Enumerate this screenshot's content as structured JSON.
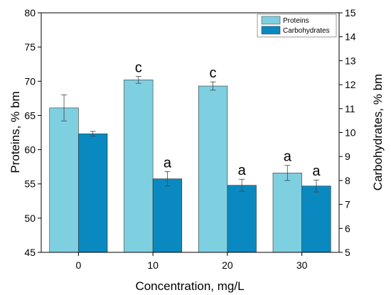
{
  "chart_data": {
    "type": "bar",
    "categories": [
      "0",
      "10",
      "20",
      "30"
    ],
    "xlabel": "Concentration, mg/L",
    "ylabel_left": "Proteins, % bm",
    "ylabel_right": "Carbohydrates, % bm",
    "ylim_left": [
      45,
      80
    ],
    "ylim_right": [
      5,
      15
    ],
    "yticks_left": [
      "45",
      "50",
      "55",
      "60",
      "65",
      "70",
      "75",
      "80"
    ],
    "yticks_right": [
      "5",
      "6",
      "7",
      "8",
      "9",
      "10",
      "11",
      "12",
      "13",
      "14",
      "15"
    ],
    "grid": false,
    "legend_position": "top-right",
    "series": [
      {
        "name": "Proteins",
        "axis": "left",
        "color": "#7ecfe0",
        "values": [
          66.1,
          70.2,
          69.3,
          56.6
        ],
        "errors": [
          1.9,
          0.5,
          0.6,
          1.1
        ],
        "labels": [
          "",
          "c",
          "c",
          "a"
        ]
      },
      {
        "name": "Carbohydrates",
        "axis": "right",
        "color": "#0a89c1",
        "values": [
          9.95,
          8.07,
          7.8,
          7.77
        ],
        "errors": [
          0.1,
          0.3,
          0.25,
          0.25
        ],
        "labels": [
          "",
          "a",
          "a",
          "a"
        ]
      }
    ]
  }
}
